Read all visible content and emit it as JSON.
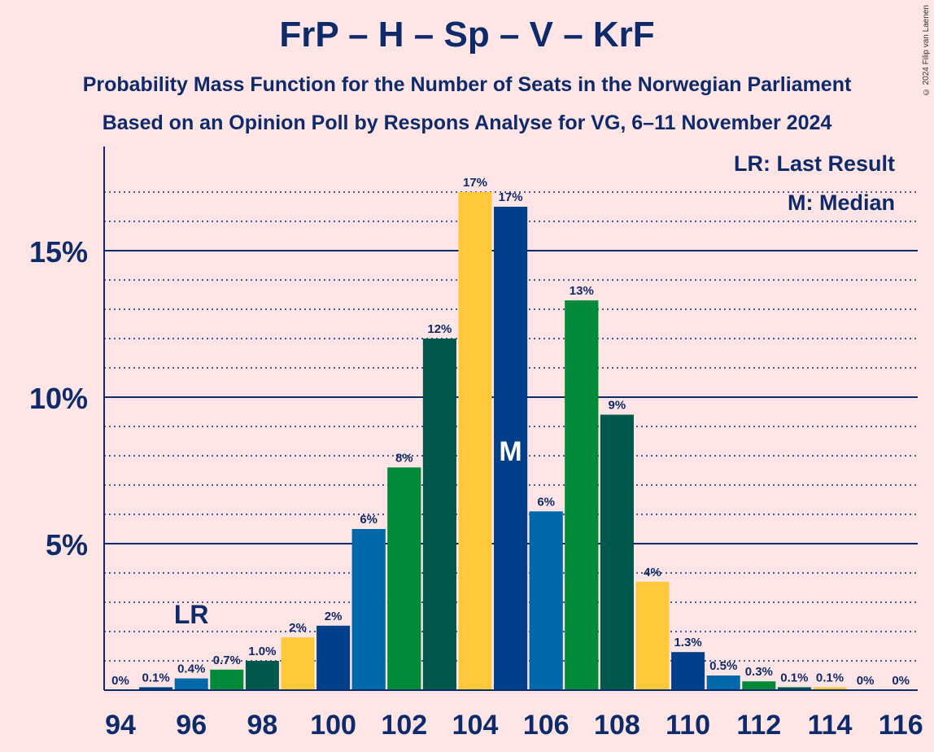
{
  "title": "FrP – H – Sp – V – KrF",
  "subtitle1": "Probability Mass Function for the Number of Seats in the Norwegian Parliament",
  "subtitle2": "Based on an Opinion Poll by Respons Analyse for VG, 6–11 November 2024",
  "copyright": "© 2024 Filip van Laenen",
  "legend": {
    "last_result": "LR: Last Result",
    "median": "M: Median"
  },
  "markers": {
    "last_result_label": "LR",
    "last_result_seat": 96,
    "median_label": "M",
    "median_seat": 105
  },
  "colors": {
    "frp": "#003f8a",
    "h": "#0068a8",
    "sp": "#008a3a",
    "v": "#00594c",
    "krf": "#ffc93b",
    "axis": "#0d2a6b"
  },
  "chart_data": {
    "type": "bar",
    "xlim": [
      94,
      116
    ],
    "ylim": [
      0,
      18.5
    ],
    "y_ticks": [
      5,
      10,
      15
    ],
    "y_tick_labels": [
      "5%",
      "10%",
      "15%"
    ],
    "x_ticks": [
      94,
      96,
      98,
      100,
      102,
      104,
      106,
      108,
      110,
      112,
      114,
      116
    ],
    "x_tick_labels": [
      "94",
      "96",
      "98",
      "100",
      "102",
      "104",
      "106",
      "108",
      "110",
      "112",
      "114",
      "116"
    ],
    "bars": [
      {
        "seat": 94,
        "value": 0,
        "label": "0%",
        "color": "#00594c"
      },
      {
        "seat": 95,
        "value": 0.1,
        "label": "0.1%",
        "color": "#003f8a"
      },
      {
        "seat": 96,
        "value": 0.4,
        "label": "0.4%",
        "color": "#0068a8"
      },
      {
        "seat": 97,
        "value": 0.7,
        "label": "0.7%",
        "color": "#008a3a"
      },
      {
        "seat": 98,
        "value": 1.0,
        "label": "1.0%",
        "color": "#00594c"
      },
      {
        "seat": 99,
        "value": 1.8,
        "label": "2%",
        "color": "#ffc93b"
      },
      {
        "seat": 100,
        "value": 2.2,
        "label": "2%",
        "color": "#003f8a"
      },
      {
        "seat": 101,
        "value": 5.5,
        "label": "6%",
        "color": "#0068a8"
      },
      {
        "seat": 102,
        "value": 7.6,
        "label": "8%",
        "color": "#008a3a"
      },
      {
        "seat": 103,
        "value": 12.0,
        "label": "12%",
        "color": "#00594c"
      },
      {
        "seat": 104,
        "value": 17.0,
        "label": "17%",
        "color": "#ffc93b"
      },
      {
        "seat": 105,
        "value": 16.5,
        "label": "17%",
        "color": "#003f8a"
      },
      {
        "seat": 106,
        "value": 6.1,
        "label": "6%",
        "color": "#0068a8"
      },
      {
        "seat": 107,
        "value": 13.3,
        "label": "13%",
        "color": "#008a3a"
      },
      {
        "seat": 108,
        "value": 9.4,
        "label": "9%",
        "color": "#00594c"
      },
      {
        "seat": 109,
        "value": 3.7,
        "label": "4%",
        "color": "#ffc93b"
      },
      {
        "seat": 110,
        "value": 1.3,
        "label": "1.3%",
        "color": "#003f8a"
      },
      {
        "seat": 111,
        "value": 0.5,
        "label": "0.5%",
        "color": "#0068a8"
      },
      {
        "seat": 112,
        "value": 0.3,
        "label": "0.3%",
        "color": "#008a3a"
      },
      {
        "seat": 113,
        "value": 0.1,
        "label": "0.1%",
        "color": "#00594c"
      },
      {
        "seat": 114,
        "value": 0.1,
        "label": "0.1%",
        "color": "#ffc93b"
      },
      {
        "seat": 115,
        "value": 0,
        "label": "0%",
        "color": "#003f8a"
      },
      {
        "seat": 116,
        "value": 0,
        "label": "0%",
        "color": "#0068a8"
      }
    ]
  }
}
